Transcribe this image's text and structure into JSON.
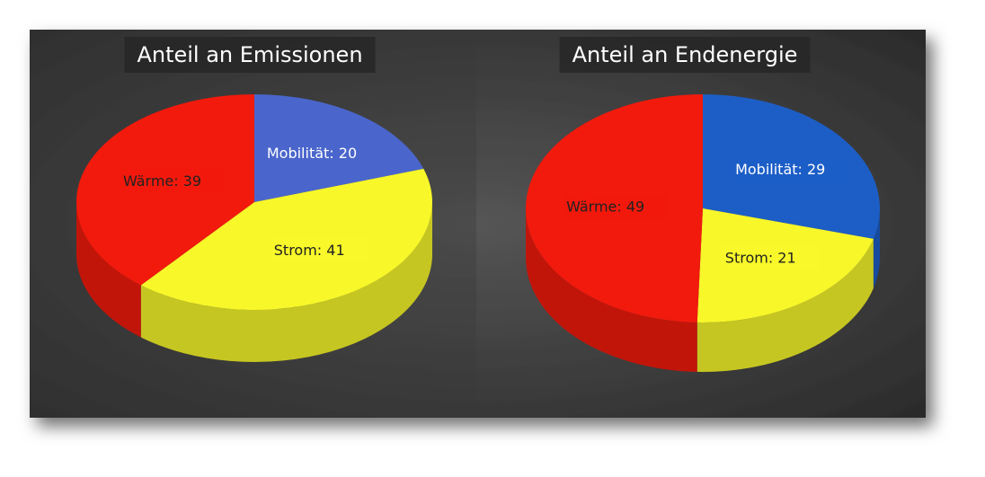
{
  "chart_data": [
    {
      "type": "pie",
      "title": "Anteil an Emissionen",
      "values": [
        20,
        41,
        39
      ],
      "value_labels": [
        "Mobilität: 20",
        "Strom: 41",
        "Wärme: 39"
      ],
      "colors": [
        "#4a66cc",
        "#f7f72a",
        "#f21a0c"
      ],
      "label_text_colors": [
        "#ffffff",
        "#222222",
        "#222222"
      ]
    },
    {
      "type": "pie",
      "title": "Anteil an Endenergie",
      "values": [
        29,
        21,
        49
      ],
      "value_labels": [
        "Mobilität: 29",
        "Strom: 21",
        "Wärme: 49"
      ],
      "colors": [
        "#1d5ec6",
        "#f7f72a",
        "#f21a0c"
      ],
      "label_text_colors": [
        "#ffffff",
        "#222222",
        "#222222"
      ]
    }
  ]
}
